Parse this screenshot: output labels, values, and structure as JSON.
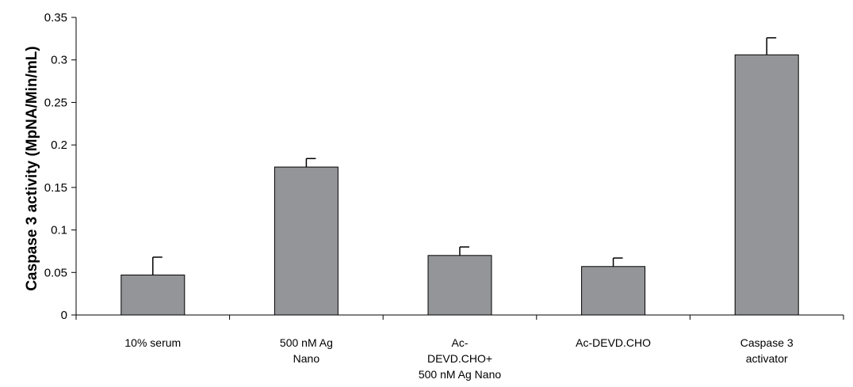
{
  "chart_data": {
    "type": "bar",
    "categories": [
      [
        "10% serum"
      ],
      [
        "500 nM Ag",
        "Nano"
      ],
      [
        "Ac-",
        "DEVD.CHO+",
        "500 nM Ag Nano"
      ],
      [
        "Ac-DEVD.CHO"
      ],
      [
        "Caspase 3",
        "activator"
      ]
    ],
    "values": [
      0.047,
      0.174,
      0.07,
      0.057,
      0.306
    ],
    "error_upper": [
      0.021,
      0.01,
      0.01,
      0.01,
      0.02
    ],
    "ylabel": "Caspase 3 activity (MpNA/Min/mL)",
    "xlabel": "",
    "title": "",
    "ylim": [
      0,
      0.35
    ],
    "yticks": [
      0,
      0.05,
      0.1,
      0.15,
      0.2,
      0.25,
      0.3,
      0.35
    ],
    "ytick_labels": [
      "0",
      "0.05",
      "0.1",
      "0.15",
      "0.2",
      "0.25",
      "0.3",
      "0.35"
    ],
    "grid": false,
    "legend": "none",
    "colors": {
      "bar_fill": "#939598",
      "bar_stroke": "#000000",
      "axis": "#000000"
    }
  }
}
